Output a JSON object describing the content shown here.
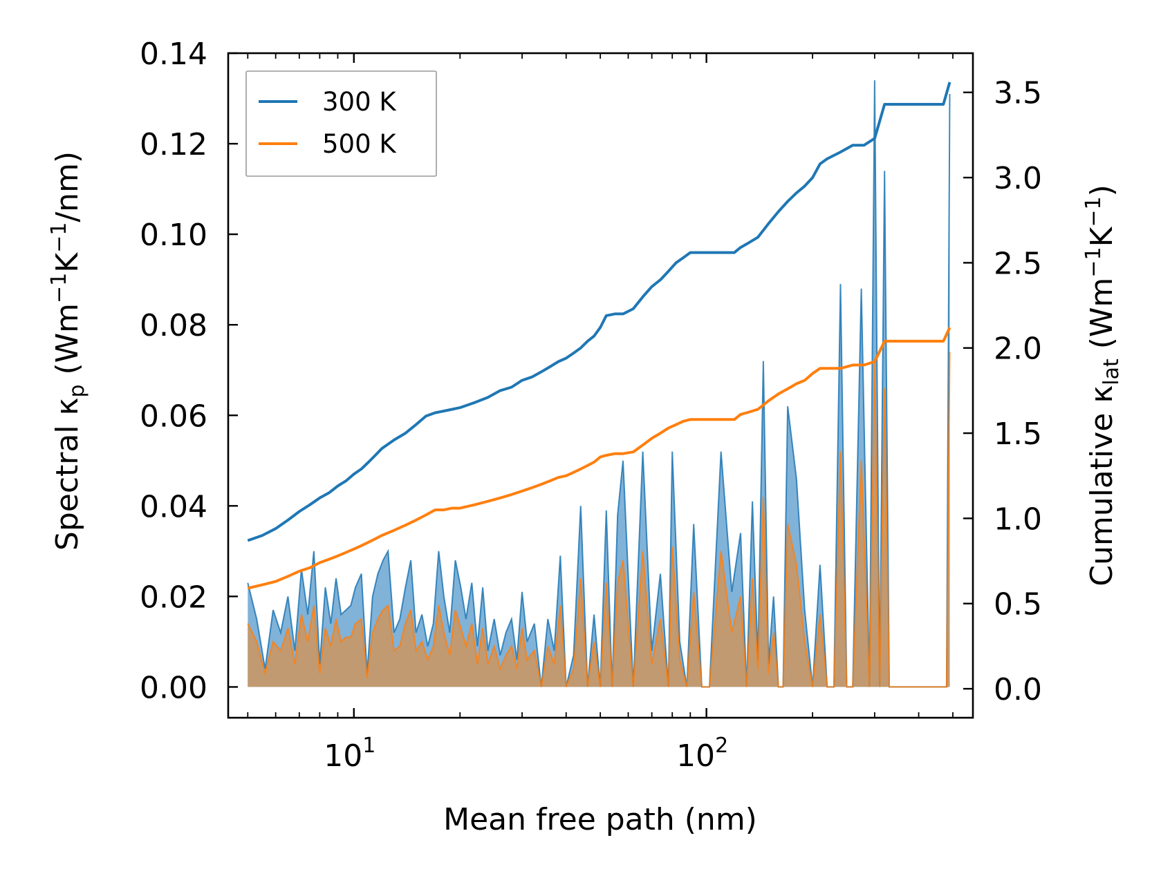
{
  "chart_data": {
    "type": "line",
    "title": "",
    "xlabel": "Mean free path (nm)",
    "ylabel_left": "Spectral κ_p (Wm⁻¹K⁻¹/nm)",
    "ylabel_right": "Cumulative κ_lat (Wm⁻¹K⁻¹)",
    "xscale": "log",
    "xlim": [
      4.4,
      570
    ],
    "ylim_left": [
      -0.0068,
      0.14
    ],
    "ylim_right": [
      -0.17,
      3.73
    ],
    "x_major_ticks": [
      {
        "value": 10,
        "base": "10",
        "exp": "1"
      },
      {
        "value": 100,
        "base": "10",
        "exp": "2"
      }
    ],
    "y_left_ticks": [
      {
        "value": 0.0,
        "label": "0.00"
      },
      {
        "value": 0.02,
        "label": "0.02"
      },
      {
        "value": 0.04,
        "label": "0.04"
      },
      {
        "value": 0.06,
        "label": "0.06"
      },
      {
        "value": 0.08,
        "label": "0.08"
      },
      {
        "value": 0.1,
        "label": "0.10"
      },
      {
        "value": 0.12,
        "label": "0.12"
      },
      {
        "value": 0.14,
        "label": "0.14"
      }
    ],
    "y_right_ticks": [
      {
        "value": 0.0,
        "label": "0.0"
      },
      {
        "value": 0.5,
        "label": "0.5"
      },
      {
        "value": 1.0,
        "label": "1.0"
      },
      {
        "value": 1.5,
        "label": "1.5"
      },
      {
        "value": 2.0,
        "label": "2.0"
      },
      {
        "value": 2.5,
        "label": "2.5"
      },
      {
        "value": 3.0,
        "label": "3.0"
      },
      {
        "value": 3.5,
        "label": "3.5"
      }
    ],
    "legend": {
      "position": "upper-left",
      "entries": [
        {
          "label": "300 K",
          "color": "#1f77b4"
        },
        {
          "label": "500 K",
          "color": "#ff7f0e"
        }
      ]
    },
    "colors": {
      "blue": "#1f77b4",
      "orange": "#ff7f0e",
      "blue_fill": "#7aaed6",
      "orange_fill": "#c4996b"
    },
    "series": [
      {
        "name": "300 K spectral",
        "axis": "left",
        "color": "#1f77b4",
        "x": [
          5.0,
          5.3,
          5.6,
          5.9,
          6.2,
          6.5,
          6.8,
          7.1,
          7.4,
          7.7,
          8.0,
          8.3,
          8.6,
          8.9,
          9.2,
          9.5,
          9.8,
          10.1,
          10.5,
          10.9,
          11.3,
          11.7,
          12.1,
          12.5,
          13.0,
          13.5,
          14.0,
          14.5,
          15.0,
          15.6,
          16.2,
          16.8,
          17.4,
          18.0,
          18.7,
          19.4,
          20.1,
          20.8,
          21.6,
          22.4,
          23.2,
          24.0,
          25.0,
          26.0,
          27.0,
          28.0,
          29.0,
          30.0,
          31.0,
          32.5,
          34.0,
          35.5,
          37.0,
          38.5,
          40.0,
          42.0,
          44.0,
          46.0,
          48.0,
          50.0,
          52.0,
          54.0,
          56.0,
          58.0,
          62.0,
          66.0,
          70.0,
          74.0,
          78.0,
          80.0,
          84.0,
          88.0,
          92.0,
          97.0,
          102.0,
          110.0,
          118.0,
          125.0,
          130.0,
          135.0,
          140.0,
          145.0,
          150.0,
          155.0,
          160.0,
          165.0,
          170.0,
          180.0,
          190.0,
          200.0,
          210.0,
          220.0,
          230.0,
          240.0,
          250.0,
          260.0,
          275.0,
          290.0,
          300.0,
          310.0,
          320.0,
          330.0,
          340.0,
          360.0,
          400.0,
          450.0,
          480.0,
          490.0
        ],
        "values": [
          0.023,
          0.015,
          0.004,
          0.017,
          0.012,
          0.02,
          0.008,
          0.026,
          0.016,
          0.03,
          0.005,
          0.022,
          0.014,
          0.024,
          0.016,
          0.017,
          0.018,
          0.022,
          0.025,
          0.003,
          0.02,
          0.025,
          0.028,
          0.03,
          0.012,
          0.015,
          0.022,
          0.028,
          0.012,
          0.016,
          0.009,
          0.014,
          0.03,
          0.02,
          0.012,
          0.028,
          0.022,
          0.015,
          0.023,
          0.009,
          0.022,
          0.008,
          0.015,
          0.007,
          0.012,
          0.015,
          0.006,
          0.021,
          0.01,
          0.014,
          0.0,
          0.015,
          0.008,
          0.029,
          0.0,
          0.007,
          0.04,
          0.0,
          0.016,
          0.0,
          0.039,
          0.0,
          0.038,
          0.05,
          0.0,
          0.052,
          0.008,
          0.025,
          0.0,
          0.052,
          0.01,
          0.0,
          0.036,
          0.0,
          0.0,
          0.052,
          0.021,
          0.034,
          0.0,
          0.041,
          0.006,
          0.072,
          0.005,
          0.02,
          0.0,
          0.0,
          0.062,
          0.046,
          0.017,
          0.0,
          0.027,
          0.0,
          0.0,
          0.089,
          0.0,
          0.0,
          0.088,
          0.0,
          0.134,
          0.0,
          0.114,
          0.0,
          0.0,
          0.0,
          0.0,
          0.0,
          0.0,
          0.131
        ]
      },
      {
        "name": "500 K spectral",
        "axis": "left",
        "color": "#ff7f0e",
        "x": [
          5.0,
          5.3,
          5.6,
          5.9,
          6.2,
          6.5,
          6.8,
          7.1,
          7.4,
          7.7,
          8.0,
          8.3,
          8.6,
          8.9,
          9.2,
          9.5,
          9.8,
          10.1,
          10.5,
          10.9,
          11.3,
          11.7,
          12.1,
          12.5,
          13.0,
          13.5,
          14.0,
          14.5,
          15.0,
          15.6,
          16.2,
          16.8,
          17.4,
          18.0,
          18.7,
          19.4,
          20.1,
          20.8,
          21.6,
          22.4,
          23.2,
          24.0,
          25.0,
          26.0,
          27.0,
          28.0,
          29.0,
          30.0,
          31.0,
          32.5,
          34.0,
          35.5,
          37.0,
          38.5,
          40.0,
          42.0,
          44.0,
          46.0,
          48.0,
          50.0,
          52.0,
          54.0,
          56.0,
          58.0,
          62.0,
          66.0,
          70.0,
          74.0,
          78.0,
          80.0,
          84.0,
          88.0,
          92.0,
          97.0,
          102.0,
          110.0,
          118.0,
          125.0,
          130.0,
          135.0,
          140.0,
          145.0,
          150.0,
          155.0,
          160.0,
          165.0,
          170.0,
          180.0,
          190.0,
          200.0,
          210.0,
          220.0,
          230.0,
          240.0,
          250.0,
          260.0,
          275.0,
          290.0,
          300.0,
          310.0,
          320.0,
          330.0,
          340.0,
          360.0,
          400.0,
          450.0,
          480.0,
          490.0
        ],
        "values": [
          0.014,
          0.01,
          0.003,
          0.01,
          0.008,
          0.013,
          0.005,
          0.016,
          0.01,
          0.018,
          0.003,
          0.013,
          0.009,
          0.015,
          0.01,
          0.011,
          0.011,
          0.014,
          0.015,
          0.002,
          0.012,
          0.015,
          0.017,
          0.018,
          0.008,
          0.009,
          0.014,
          0.017,
          0.008,
          0.01,
          0.006,
          0.009,
          0.018,
          0.012,
          0.007,
          0.017,
          0.013,
          0.009,
          0.014,
          0.005,
          0.013,
          0.005,
          0.009,
          0.004,
          0.007,
          0.009,
          0.004,
          0.013,
          0.006,
          0.008,
          0.0,
          0.009,
          0.005,
          0.018,
          0.0,
          0.004,
          0.024,
          0.0,
          0.01,
          0.0,
          0.023,
          0.0,
          0.023,
          0.028,
          0.0,
          0.03,
          0.005,
          0.015,
          0.0,
          0.031,
          0.006,
          0.0,
          0.021,
          0.0,
          0.0,
          0.03,
          0.012,
          0.02,
          0.0,
          0.024,
          0.004,
          0.042,
          0.003,
          0.012,
          0.0,
          0.0,
          0.036,
          0.027,
          0.01,
          0.0,
          0.016,
          0.0,
          0.0,
          0.052,
          0.0,
          0.0,
          0.05,
          0.0,
          0.072,
          0.0,
          0.066,
          0.0,
          0.0,
          0.0,
          0.0,
          0.0,
          0.0,
          0.074
        ]
      },
      {
        "name": "300 K cumulative",
        "axis": "right",
        "color": "#1f77b4",
        "x": [
          5.0,
          5.5,
          6.0,
          6.5,
          7.0,
          7.5,
          8.0,
          8.5,
          9.0,
          9.5,
          10.0,
          10.5,
          11.0,
          11.5,
          12.0,
          13.0,
          14.0,
          15.0,
          16.0,
          17.0,
          18.0,
          19.0,
          20.0,
          22.0,
          24.0,
          26.0,
          28.0,
          30.0,
          32.0,
          34.0,
          36.0,
          38.0,
          40.0,
          42.0,
          44.0,
          46.0,
          48.0,
          50.0,
          52.0,
          55.0,
          58.0,
          62.0,
          66.0,
          70.0,
          74.0,
          78.0,
          82.0,
          86.0,
          90.0,
          95.0,
          100.0,
          110.0,
          120.0,
          125.0,
          130.0,
          140.0,
          150.0,
          160.0,
          170.0,
          180.0,
          190.0,
          200.0,
          210.0,
          220.0,
          240.0,
          260.0,
          280.0,
          300.0,
          310.0,
          320.0,
          360.0,
          420.0,
          470.0,
          490.0
        ],
        "values": [
          0.87,
          0.9,
          0.94,
          0.99,
          1.04,
          1.08,
          1.12,
          1.15,
          1.19,
          1.22,
          1.26,
          1.29,
          1.33,
          1.37,
          1.41,
          1.46,
          1.5,
          1.55,
          1.6,
          1.62,
          1.63,
          1.64,
          1.65,
          1.68,
          1.71,
          1.75,
          1.77,
          1.81,
          1.83,
          1.86,
          1.89,
          1.92,
          1.94,
          1.97,
          2.0,
          2.04,
          2.07,
          2.12,
          2.19,
          2.2,
          2.2,
          2.23,
          2.3,
          2.36,
          2.4,
          2.45,
          2.5,
          2.53,
          2.56,
          2.56,
          2.56,
          2.56,
          2.56,
          2.59,
          2.61,
          2.65,
          2.73,
          2.8,
          2.86,
          2.91,
          2.95,
          3.0,
          3.08,
          3.11,
          3.15,
          3.19,
          3.19,
          3.23,
          3.33,
          3.43,
          3.43,
          3.43,
          3.43,
          3.56
        ]
      },
      {
        "name": "500 K cumulative",
        "axis": "right",
        "color": "#ff7f0e",
        "x": [
          5.0,
          5.5,
          6.0,
          6.5,
          7.0,
          7.5,
          8.0,
          8.5,
          9.0,
          9.5,
          10.0,
          10.5,
          11.0,
          11.5,
          12.0,
          13.0,
          14.0,
          15.0,
          16.0,
          17.0,
          18.0,
          19.0,
          20.0,
          22.0,
          24.0,
          26.0,
          28.0,
          30.0,
          32.0,
          34.0,
          36.0,
          38.0,
          40.0,
          42.0,
          44.0,
          46.0,
          48.0,
          50.0,
          52.0,
          55.0,
          58.0,
          62.0,
          66.0,
          70.0,
          74.0,
          78.0,
          82.0,
          86.0,
          90.0,
          95.0,
          100.0,
          110.0,
          120.0,
          125.0,
          130.0,
          140.0,
          150.0,
          160.0,
          170.0,
          180.0,
          190.0,
          200.0,
          210.0,
          220.0,
          240.0,
          260.0,
          280.0,
          300.0,
          310.0,
          320.0,
          360.0,
          420.0,
          470.0,
          490.0
        ],
        "values": [
          0.59,
          0.61,
          0.63,
          0.66,
          0.69,
          0.71,
          0.74,
          0.76,
          0.78,
          0.8,
          0.82,
          0.84,
          0.86,
          0.88,
          0.9,
          0.93,
          0.96,
          0.99,
          1.02,
          1.05,
          1.05,
          1.06,
          1.06,
          1.08,
          1.1,
          1.12,
          1.14,
          1.16,
          1.18,
          1.2,
          1.22,
          1.24,
          1.25,
          1.27,
          1.29,
          1.31,
          1.33,
          1.36,
          1.37,
          1.38,
          1.38,
          1.39,
          1.43,
          1.47,
          1.5,
          1.53,
          1.55,
          1.57,
          1.58,
          1.58,
          1.58,
          1.58,
          1.58,
          1.61,
          1.62,
          1.64,
          1.69,
          1.73,
          1.76,
          1.79,
          1.81,
          1.85,
          1.88,
          1.88,
          1.88,
          1.9,
          1.9,
          1.92,
          1.98,
          2.04,
          2.04,
          2.04,
          2.04,
          2.12
        ]
      }
    ]
  }
}
